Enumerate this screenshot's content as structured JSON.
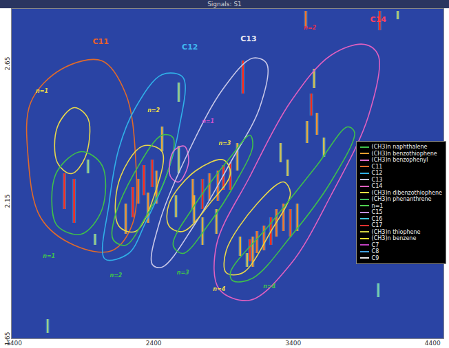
{
  "chart_data": {
    "type": "chromatogram",
    "title": "Signals: S1",
    "xlim": [
      1380,
      4480
    ],
    "xticks": [
      1400,
      2400,
      3400,
      4400
    ],
    "ylim": [
      1.65,
      2.85
    ],
    "yticks": [
      1.65,
      2.15,
      2.65
    ],
    "legend": "right",
    "legend_entries": [
      {
        "name": "(CH3)n naphthalene",
        "color": "#3fbf4a"
      },
      {
        "name": "(CH3)n benzothiophene",
        "color": "#f0a030"
      },
      {
        "name": "(CH3)n benzophenyl",
        "color": "#e070d0"
      },
      {
        "name": "C11",
        "color": "#e06a2a"
      },
      {
        "name": "C12",
        "color": "#30b0e8"
      },
      {
        "name": "C13",
        "color": "#c8c8e8"
      },
      {
        "name": "C14",
        "color": "#e060c0"
      },
      {
        "name": "(CH3)n dibenzothiophene",
        "color": "#e8e040"
      },
      {
        "name": "(CH3)n phenanthrene",
        "color": "#40c060"
      },
      {
        "name": "n=1",
        "color": "#50d050"
      },
      {
        "name": "C15",
        "color": "#c090e0"
      },
      {
        "name": "C16",
        "color": "#40c8e0"
      },
      {
        "name": "C17",
        "color": "#e03030"
      },
      {
        "name": "(CH3)n thiophene",
        "color": "#d0d040"
      },
      {
        "name": "(CH3)n benzene",
        "color": "#f0e030"
      },
      {
        "name": "C7",
        "color": "#c040c0"
      },
      {
        "name": "C8",
        "color": "#40a0e0"
      },
      {
        "name": "C9",
        "color": "#e8e8e8"
      }
    ],
    "peaks": [
      [
        1760,
        2.12,
        2.25,
        1.0
      ],
      [
        1830,
        2.07,
        2.23,
        1.0
      ],
      [
        1930,
        2.25,
        2.3,
        0.3
      ],
      [
        1980,
        1.99,
        2.03,
        0.3
      ],
      [
        2200,
        2.03,
        2.14,
        0.7
      ],
      [
        2250,
        2.09,
        2.2,
        1.0
      ],
      [
        2290,
        2.14,
        2.23,
        0.8
      ],
      [
        2330,
        2.17,
        2.28,
        1.0
      ],
      [
        2390,
        2.2,
        2.3,
        1.0
      ],
      [
        2420,
        2.14,
        2.26,
        0.7
      ],
      [
        2460,
        2.33,
        2.42,
        0.6
      ],
      [
        2360,
        2.07,
        2.18,
        0.7
      ],
      [
        2580,
        2.51,
        2.58,
        0.3
      ],
      [
        2580,
        2.25,
        2.35,
        0.4
      ],
      [
        2680,
        2.12,
        2.23,
        0.7
      ],
      [
        2750,
        2.12,
        2.23,
        1.0
      ],
      [
        2800,
        2.15,
        2.25,
        0.8
      ],
      [
        2860,
        2.15,
        2.26,
        0.8
      ],
      [
        2900,
        2.19,
        2.28,
        1.0
      ],
      [
        2950,
        2.19,
        2.29,
        1.0
      ],
      [
        3000,
        2.26,
        2.36,
        0.6
      ],
      [
        2690,
        2.07,
        2.17,
        0.6
      ],
      [
        2560,
        2.09,
        2.17,
        0.5
      ],
      [
        2750,
        1.99,
        2.09,
        0.6
      ],
      [
        2850,
        2.03,
        2.12,
        0.6
      ],
      [
        3040,
        2.54,
        2.66,
        1.0
      ],
      [
        3020,
        1.95,
        2.02,
        0.6
      ],
      [
        3090,
        1.93,
        2.01,
        1.0
      ],
      [
        3140,
        1.96,
        2.04,
        0.8
      ],
      [
        3190,
        1.97,
        2.06,
        0.8
      ],
      [
        3240,
        1.99,
        2.09,
        1.0
      ],
      [
        3280,
        2.02,
        2.12,
        0.8
      ],
      [
        3330,
        2.04,
        2.14,
        0.8
      ],
      [
        3380,
        2.02,
        2.12,
        0.9
      ],
      [
        3430,
        2.04,
        2.14,
        0.7
      ],
      [
        3110,
        1.91,
        2.02,
        0.7
      ],
      [
        3070,
        1.91,
        1.96,
        0.5
      ],
      [
        3500,
        2.36,
        2.44,
        0.6
      ],
      [
        3530,
        2.46,
        2.54,
        1.0
      ],
      [
        3570,
        2.39,
        2.47,
        0.7
      ],
      [
        3620,
        2.31,
        2.38,
        0.5
      ],
      [
        3550,
        2.56,
        2.63,
        0.5
      ],
      [
        3360,
        2.24,
        2.3,
        0.5
      ],
      [
        3310,
        2.29,
        2.36,
        0.5
      ],
      [
        3490,
        2.78,
        2.84,
        0.8
      ],
      [
        4020,
        2.77,
        2.84,
        1.0
      ],
      [
        4150,
        2.81,
        2.84,
        0.4
      ],
      [
        4010,
        1.8,
        1.85,
        0.2
      ],
      [
        1640,
        1.67,
        1.72,
        0.3
      ]
    ],
    "contours": [
      {
        "color": "#e06a2a",
        "points": [
          [
            1520,
            2.51
          ],
          [
            1740,
            2.63
          ],
          [
            2030,
            2.66
          ],
          [
            2200,
            2.54
          ],
          [
            2270,
            2.31
          ],
          [
            2250,
            2.07
          ],
          [
            2100,
            1.97
          ],
          [
            1830,
            1.99
          ],
          [
            1590,
            2.09
          ],
          [
            1500,
            2.31
          ]
        ]
      },
      {
        "color": "#e8d84a",
        "points": [
          [
            1710,
            2.42
          ],
          [
            1830,
            2.49
          ],
          [
            1930,
            2.45
          ],
          [
            1910,
            2.31
          ],
          [
            1810,
            2.25
          ],
          [
            1710,
            2.29
          ]
        ]
      },
      {
        "color": "#3fbf4a",
        "points": [
          [
            1710,
            2.26
          ],
          [
            1880,
            2.33
          ],
          [
            2030,
            2.28
          ],
          [
            2030,
            2.12
          ],
          [
            1880,
            2.03
          ],
          [
            1710,
            2.06
          ],
          [
            1670,
            2.15
          ]
        ]
      },
      {
        "color": "#30b0e8",
        "points": [
          [
            2270,
            2.49
          ],
          [
            2460,
            2.61
          ],
          [
            2610,
            2.6
          ],
          [
            2580,
            2.41
          ],
          [
            2490,
            2.24
          ],
          [
            2340,
            2.07
          ],
          [
            2220,
            1.96
          ],
          [
            2050,
            1.94
          ],
          [
            2080,
            2.14
          ],
          [
            2150,
            2.34
          ]
        ]
      },
      {
        "color": "#e8d84a",
        "points": [
          [
            2150,
            2.22
          ],
          [
            2320,
            2.35
          ],
          [
            2460,
            2.33
          ],
          [
            2410,
            2.18
          ],
          [
            2270,
            2.04
          ],
          [
            2150,
            2.06
          ]
        ]
      },
      {
        "color": "#3fbf4a",
        "points": [
          [
            2120,
            2.09
          ],
          [
            2270,
            2.26
          ],
          [
            2460,
            2.39
          ],
          [
            2540,
            2.38
          ],
          [
            2490,
            2.24
          ],
          [
            2340,
            2.09
          ],
          [
            2200,
            1.99
          ],
          [
            2110,
            2.01
          ]
        ]
      },
      {
        "color": "#e070d0",
        "points": [
          [
            2540,
            2.33
          ],
          [
            2620,
            2.35
          ],
          [
            2650,
            2.29
          ],
          [
            2580,
            2.22
          ],
          [
            2520,
            2.24
          ]
        ]
      },
      {
        "color": "#c8c8e8",
        "points": [
          [
            2440,
            2.07
          ],
          [
            2660,
            2.34
          ],
          [
            2900,
            2.56
          ],
          [
            3110,
            2.67
          ],
          [
            3210,
            2.65
          ],
          [
            3160,
            2.49
          ],
          [
            2950,
            2.29
          ],
          [
            2700,
            2.07
          ],
          [
            2460,
            1.91
          ],
          [
            2390,
            1.92
          ]
        ]
      },
      {
        "color": "#e8d84a",
        "points": [
          [
            2510,
            2.14
          ],
          [
            2700,
            2.26
          ],
          [
            2900,
            2.3
          ],
          [
            2950,
            2.25
          ],
          [
            2800,
            2.14
          ],
          [
            2610,
            2.04
          ],
          [
            2510,
            2.06
          ]
        ]
      },
      {
        "color": "#3fbf4a",
        "points": [
          [
            2540,
            1.99
          ],
          [
            2700,
            2.14
          ],
          [
            2950,
            2.31
          ],
          [
            3090,
            2.39
          ],
          [
            3110,
            2.35
          ],
          [
            2990,
            2.22
          ],
          [
            2800,
            2.07
          ],
          [
            2610,
            1.96
          ]
        ]
      },
      {
        "color": "#e060c0",
        "points": [
          [
            2850,
            1.99
          ],
          [
            3090,
            2.24
          ],
          [
            3380,
            2.51
          ],
          [
            3670,
            2.68
          ],
          [
            3910,
            2.72
          ],
          [
            4010,
            2.68
          ],
          [
            3940,
            2.46
          ],
          [
            3670,
            2.17
          ],
          [
            3380,
            1.92
          ],
          [
            3090,
            1.79
          ],
          [
            2870,
            1.83
          ]
        ]
      },
      {
        "color": "#e8d84a",
        "points": [
          [
            2920,
            1.97
          ],
          [
            3140,
            2.14
          ],
          [
            3330,
            2.22
          ],
          [
            3380,
            2.18
          ],
          [
            3240,
            2.04
          ],
          [
            3040,
            1.89
          ],
          [
            2920,
            1.89
          ]
        ]
      },
      {
        "color": "#3fbf4a",
        "points": [
          [
            2950,
            1.89
          ],
          [
            3240,
            2.07
          ],
          [
            3570,
            2.28
          ],
          [
            3790,
            2.42
          ],
          [
            3840,
            2.4
          ],
          [
            3670,
            2.22
          ],
          [
            3380,
            2.02
          ],
          [
            3110,
            1.87
          ],
          [
            2970,
            1.86
          ]
        ]
      }
    ],
    "group_labels": [
      {
        "text": "C11",
        "x": 2020,
        "y": 2.73,
        "color": "#e8602a"
      },
      {
        "text": "C12",
        "x": 2660,
        "y": 2.71,
        "color": "#40b8f0"
      },
      {
        "text": "C13",
        "x": 3080,
        "y": 2.74,
        "color": "#e8e8f0"
      },
      {
        "text": "C14",
        "x": 4010,
        "y": 2.81,
        "color": "#ff4060"
      }
    ],
    "series_labels": [
      {
        "text": "n=1",
        "x": 1600,
        "y": 2.55,
        "color": "#e8d84a"
      },
      {
        "text": "n=2",
        "x": 2400,
        "y": 2.48,
        "color": "#e8d84a"
      },
      {
        "text": "n=1",
        "x": 2790,
        "y": 2.44,
        "color": "#d050d0"
      },
      {
        "text": "n=3",
        "x": 2910,
        "y": 2.36,
        "color": "#e8d84a"
      },
      {
        "text": "n=2",
        "x": 3520,
        "y": 2.78,
        "color": "#e03050"
      },
      {
        "text": "n=1",
        "x": 1650,
        "y": 1.95,
        "color": "#40c050"
      },
      {
        "text": "n=2",
        "x": 2130,
        "y": 1.88,
        "color": "#40c050"
      },
      {
        "text": "n=3",
        "x": 2610,
        "y": 1.89,
        "color": "#40c050"
      },
      {
        "text": "n=4",
        "x": 2870,
        "y": 1.83,
        "color": "#e8d84a"
      },
      {
        "text": "n=4",
        "x": 3230,
        "y": 1.84,
        "color": "#40c050"
      }
    ]
  }
}
